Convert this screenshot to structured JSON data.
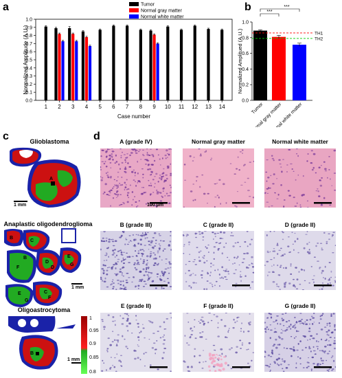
{
  "panels": {
    "a": "a",
    "b": "b",
    "c": "c",
    "d": "d"
  },
  "chart_data": [
    {
      "type": "bar",
      "ylabel": "Normalized Amplitude (A.U.)",
      "xlabel": "Case number",
      "ylim": [
        0,
        1.0
      ],
      "yticks": [
        "0.0",
        "0.1",
        "0.2",
        "0.3",
        "0.4",
        "0.5",
        "0.6",
        "0.7",
        "0.8",
        "0.9",
        "1.0"
      ],
      "categories": [
        "1",
        "2",
        "3",
        "4",
        "5",
        "6",
        "7",
        "8",
        "9",
        "10",
        "11",
        "12",
        "13",
        "14"
      ],
      "legend_position": "top-right",
      "series": [
        {
          "name": "Tumor",
          "color": "#000000",
          "values": [
            0.91,
            0.89,
            0.89,
            0.85,
            0.87,
            0.92,
            0.92,
            0.87,
            0.86,
            0.91,
            0.87,
            0.92,
            0.88,
            0.87
          ],
          "errors": [
            0.01,
            0.01,
            0.02,
            0.01,
            0.01,
            0.01,
            0.01,
            0.01,
            0.01,
            0.01,
            0.01,
            0.01,
            0.01,
            0.01
          ]
        },
        {
          "name": "Normal gray matter",
          "color": "#ff0000",
          "values": [
            null,
            0.82,
            0.82,
            0.78,
            null,
            null,
            null,
            null,
            0.81,
            null,
            null,
            null,
            null,
            null
          ],
          "errors": [
            0,
            0.01,
            0.01,
            0.01,
            0,
            0,
            0,
            0,
            0.01,
            0,
            0,
            0,
            0,
            0
          ]
        },
        {
          "name": "Normal white matter",
          "color": "#0000ff",
          "values": [
            null,
            0.73,
            0.73,
            0.67,
            null,
            null,
            null,
            null,
            0.7,
            null,
            null,
            null,
            null,
            null
          ],
          "errors": [
            0,
            0.01,
            0.01,
            0.01,
            0,
            0,
            0,
            0,
            0.01,
            0,
            0,
            0,
            0,
            0
          ]
        }
      ]
    },
    {
      "type": "bar",
      "ylabel": "Normalized Amplitued (A.U.)",
      "ylim": [
        0,
        1.0
      ],
      "yticks": [
        "0.0",
        "0.2",
        "0.4",
        "0.6",
        "0.8",
        "1.0"
      ],
      "categories": [
        "Tumor",
        "Normal gray matter",
        "Normal white matter"
      ],
      "values": [
        0.89,
        0.81,
        0.71
      ],
      "errors": [
        0.01,
        0.02,
        0.02
      ],
      "colors": [
        "#000000",
        "#ff0000",
        "#0000ff"
      ],
      "thresholds": [
        {
          "name": "TH1",
          "value": 0.86,
          "color": "#ff0000"
        },
        {
          "name": "TH2",
          "value": 0.79,
          "color": "#00cc00"
        }
      ],
      "significance": [
        "***",
        "***"
      ]
    }
  ],
  "tissue_maps": {
    "titles": [
      "Glioblastoma",
      "Anaplastic oligodendroglioma",
      "Oligoastrocytoma"
    ],
    "scale_label": "1 mm",
    "labels_glio": [
      "A"
    ],
    "labels_ana": [
      "C",
      "B",
      "D",
      "E",
      "F",
      "G",
      "D",
      "C",
      "E",
      "G",
      "F",
      "B"
    ],
    "labels_oligo": [
      "B"
    ],
    "colorbar_ticks": [
      "1",
      "0.95",
      "0.9",
      "0.85",
      "0.8"
    ]
  },
  "histology": {
    "titles": [
      "A (grade IV)",
      "Normal gray matter",
      "Normal white matter",
      "B (grade III)",
      "C (grade II)",
      "D (grade II)",
      "E (grade II)",
      "F (grade II)",
      "G (grade II)"
    ],
    "scale_label": "100 μm"
  }
}
